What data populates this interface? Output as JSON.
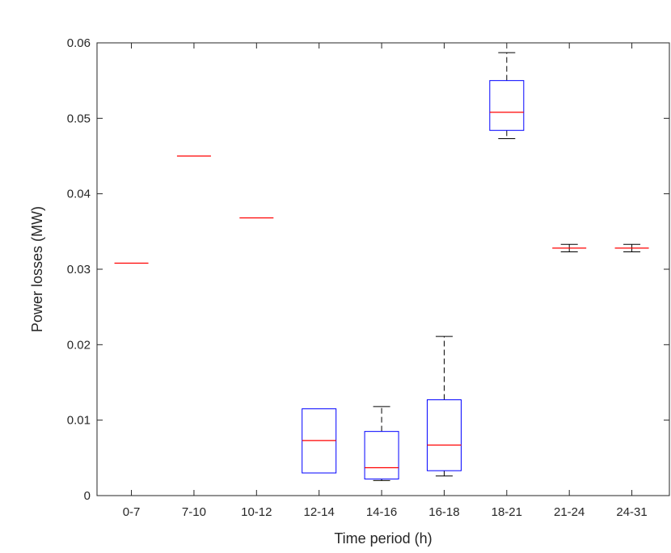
{
  "chart_data": {
    "type": "box",
    "title": "",
    "xlabel": "Time period (h)",
    "ylabel": "Power losses (MW)",
    "ylim": [
      0,
      0.06
    ],
    "yticks": [
      "0",
      "0.01",
      "0.02",
      "0.03",
      "0.04",
      "0.05",
      "0.06"
    ],
    "yticks_values": [
      0,
      0.01,
      0.02,
      0.03,
      0.04,
      0.05,
      0.06
    ],
    "grid": false,
    "categories": [
      "0-7",
      "7-10",
      "10-12",
      "12-14",
      "14-16",
      "16-18",
      "18-21",
      "21-24",
      "24-31"
    ],
    "boxes": [
      {
        "min": 0.0308,
        "q1": 0.0308,
        "median": 0.0308,
        "q3": 0.0308,
        "max": 0.0308
      },
      {
        "min": 0.045,
        "q1": 0.045,
        "median": 0.045,
        "q3": 0.045,
        "max": 0.045
      },
      {
        "min": 0.0368,
        "q1": 0.0368,
        "median": 0.0368,
        "q3": 0.0368,
        "max": 0.0368
      },
      {
        "min": 0.003,
        "q1": 0.003,
        "median": 0.0073,
        "q3": 0.0115,
        "max": 0.0115
      },
      {
        "min": 0.002,
        "q1": 0.0022,
        "median": 0.0037,
        "q3": 0.0085,
        "max": 0.0118
      },
      {
        "min": 0.0026,
        "q1": 0.0033,
        "median": 0.0067,
        "q3": 0.0127,
        "max": 0.0211
      },
      {
        "min": 0.0473,
        "q1": 0.0484,
        "median": 0.0508,
        "q3": 0.055,
        "max": 0.0587
      },
      {
        "min": 0.0323,
        "q1": 0.0328,
        "median": 0.0328,
        "q3": 0.0328,
        "max": 0.0333
      },
      {
        "min": 0.0323,
        "q1": 0.0328,
        "median": 0.0328,
        "q3": 0.0328,
        "max": 0.0333
      }
    ],
    "colors": {
      "box": "#0000ff",
      "median": "#ff0000",
      "whisker": "#000000",
      "axis": "#262626"
    }
  }
}
